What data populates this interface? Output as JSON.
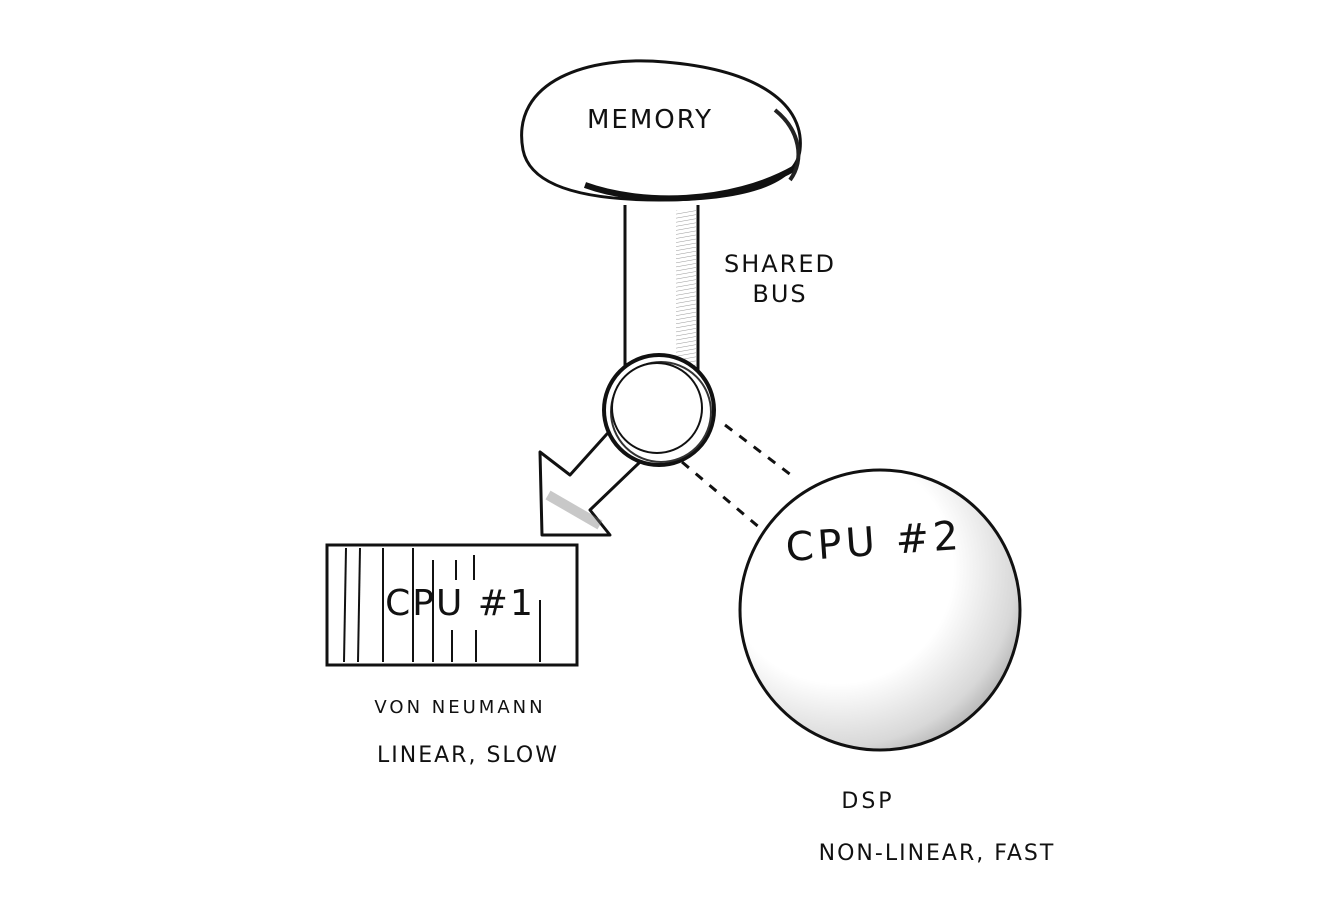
{
  "diagram": {
    "memory": {
      "label": "MEMORY"
    },
    "bus": {
      "line1": "SHARED",
      "line2": "BUS"
    },
    "cpu1": {
      "label": "CPU #1",
      "caption1": "VON NEUMANN",
      "caption2": "LINEAR, SLOW"
    },
    "cpu2": {
      "label": "CPU #2",
      "caption1": "DSP",
      "caption2": "NON-LINEAR, FAST"
    }
  }
}
